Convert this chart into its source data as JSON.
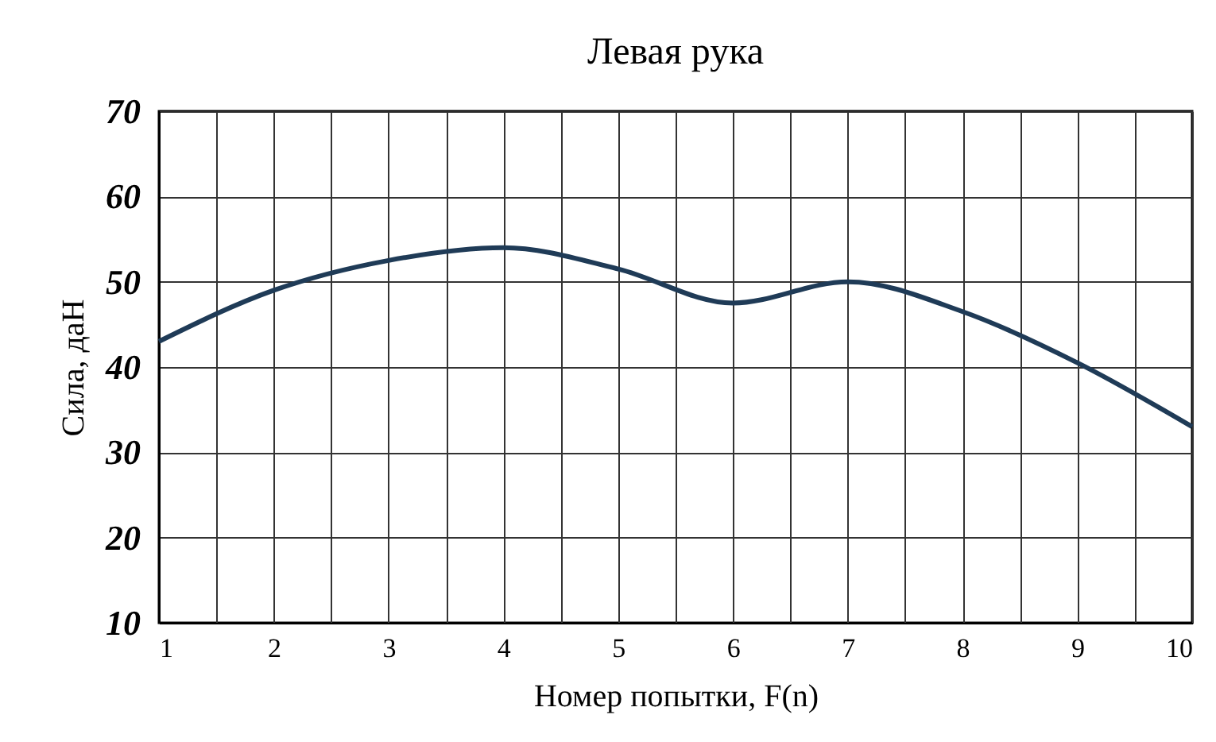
{
  "chart_data": {
    "type": "line",
    "title": "Левая рука",
    "xlabel": "Номер попытки, F(n)",
    "ylabel": "Сила, даН",
    "x": [
      1,
      2,
      3,
      4,
      5,
      6,
      7,
      8,
      9,
      10
    ],
    "series": [
      {
        "color": "#1f3b57",
        "values": [
          43,
          49,
          52.5,
          54,
          51.5,
          47.5,
          50,
          46.5,
          40.5,
          33
        ]
      }
    ],
    "xlim": [
      1,
      10
    ],
    "xticks": [
      1,
      {
        "value": 1.5,
        "label": null
      },
      2,
      {
        "value": 2.5,
        "label": null
      },
      3,
      {
        "value": 3.5,
        "label": null
      },
      4,
      {
        "value": 4.5,
        "label": null
      },
      5,
      {
        "value": 5.5,
        "label": null
      },
      6,
      {
        "value": 6.5,
        "label": null
      },
      7,
      {
        "value": 7.5,
        "label": null
      },
      8,
      {
        "value": 8.5,
        "label": null
      },
      9,
      {
        "value": 9.5,
        "label": null
      },
      10
    ],
    "ylim": [
      10,
      70
    ],
    "yticks": [
      10,
      20,
      30,
      40,
      50,
      60,
      70
    ],
    "grid": true,
    "line_style": "solid",
    "marker": "none"
  }
}
